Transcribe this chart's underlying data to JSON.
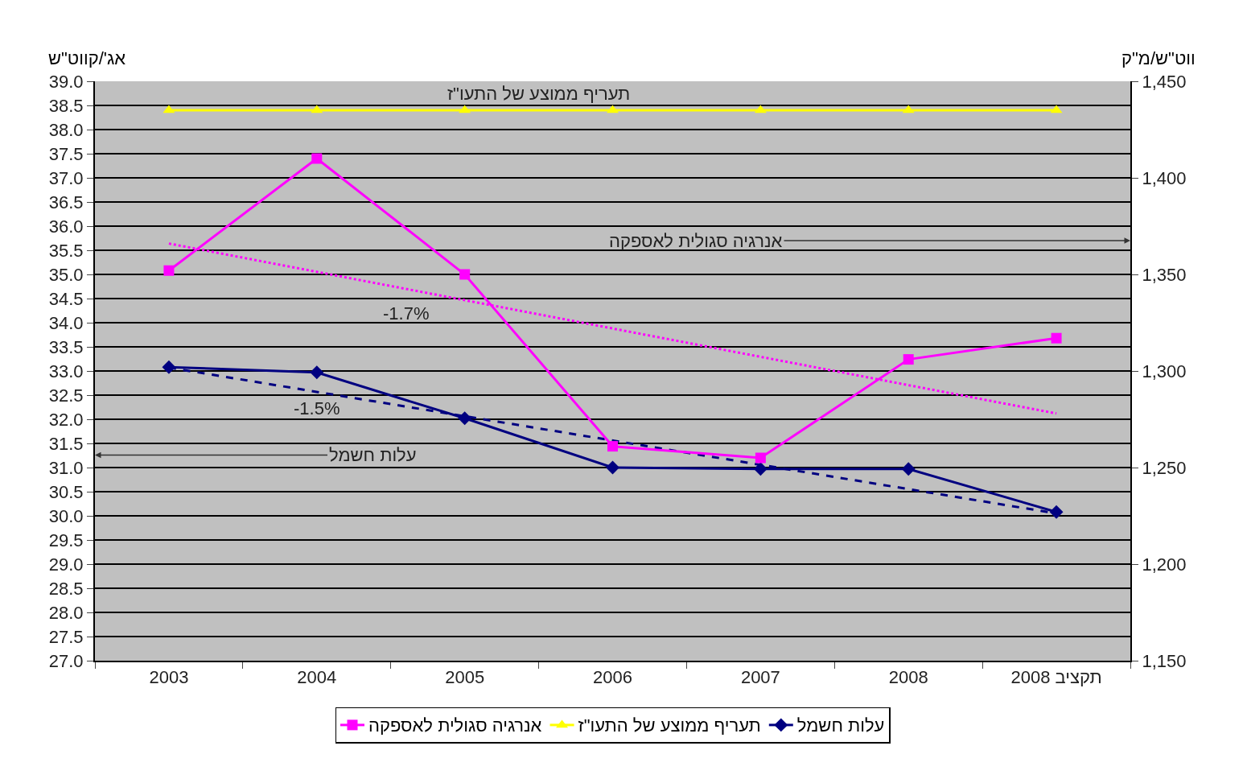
{
  "chart_data": {
    "type": "line",
    "ylabel": "אג'/קווט\"ש",
    "y2label": "ווט\"ש/מ\"ק",
    "categories": [
      "2003",
      "2004",
      "2005",
      "2006",
      "2007",
      "2008",
      "תקציב 2008"
    ],
    "series": [
      {
        "name": "עלות חשמל",
        "color": "#000080",
        "marker": "diamond",
        "line_style": "solid",
        "values": [
          33.08,
          32.97,
          32.02,
          31.0,
          30.97,
          30.97,
          30.08
        ]
      },
      {
        "name": "תעריף ממוצע של התעו\"ז",
        "color": "#ffff00",
        "marker": "triangle",
        "line_style": "solid",
        "values": [
          38.4,
          38.4,
          38.4,
          38.4,
          38.4,
          38.4,
          38.4
        ]
      },
      {
        "name": "אנרגיה סגולית לאספקה",
        "color": "#ff00ff",
        "marker": "square",
        "line_style": "solid",
        "axis": "y2",
        "values": [
          1352,
          1410,
          1350,
          1261,
          1255,
          1306,
          1317
        ]
      },
      {
        "color": "#ff00ff",
        "marker": "none",
        "line_style": "dotted",
        "axis": "y2",
        "values": [
          1366,
          null,
          null,
          null,
          null,
          null,
          1278
        ]
      },
      {
        "color": "#000080",
        "marker": "none",
        "line_style": "dashed",
        "values": [
          33.07,
          null,
          null,
          null,
          null,
          null,
          30.05
        ]
      }
    ],
    "ylim": [
      27,
      39
    ],
    "yticks": [
      {
        "value": 27,
        "label": "27.0"
      },
      {
        "value": 27.5,
        "label": "27.5"
      },
      {
        "value": 28,
        "label": "28.0"
      },
      {
        "value": 28.5,
        "label": "28.5"
      },
      {
        "value": 29,
        "label": "29.0"
      },
      {
        "value": 29.5,
        "label": "29.5"
      },
      {
        "value": 30,
        "label": "30.0"
      },
      {
        "value": 30.5,
        "label": "30.5"
      },
      {
        "value": 31,
        "label": "31.0"
      },
      {
        "value": 31.5,
        "label": "31.5"
      },
      {
        "value": 32,
        "label": "32.0"
      },
      {
        "value": 32.5,
        "label": "32.5"
      },
      {
        "value": 33,
        "label": "33.0"
      },
      {
        "value": 33.5,
        "label": "33.5"
      },
      {
        "value": 34,
        "label": "34.0"
      },
      {
        "value": 34.5,
        "label": "34.5"
      },
      {
        "value": 35,
        "label": "35.0"
      },
      {
        "value": 35.5,
        "label": "35.5"
      },
      {
        "value": 36,
        "label": "36.0"
      },
      {
        "value": 36.5,
        "label": "36.5"
      },
      {
        "value": 37,
        "label": "37.0"
      },
      {
        "value": 37.5,
        "label": "37.5"
      },
      {
        "value": 38,
        "label": "38.0"
      },
      {
        "value": 38.5,
        "label": "38.5"
      },
      {
        "value": 39,
        "label": "39.0"
      }
    ],
    "y2lim": [
      1150,
      1450
    ],
    "y2ticks": [
      {
        "value": 1150,
        "label": "1,150"
      },
      {
        "value": 1200,
        "label": "1,200"
      },
      {
        "value": 1250,
        "label": "1,250"
      },
      {
        "value": 1300,
        "label": "1,300"
      },
      {
        "value": 1350,
        "label": "1,350"
      },
      {
        "value": 1400,
        "label": "1,400"
      },
      {
        "value": 1450,
        "label": "1,450"
      }
    ],
    "annotations": [
      "תעריף ממוצע של התעו\"ז",
      "אנרגיה סגולית לאספקה",
      "-1.7%",
      "-1.5%",
      "עלות חשמל"
    ],
    "grid": "y",
    "legend": "bottom"
  }
}
